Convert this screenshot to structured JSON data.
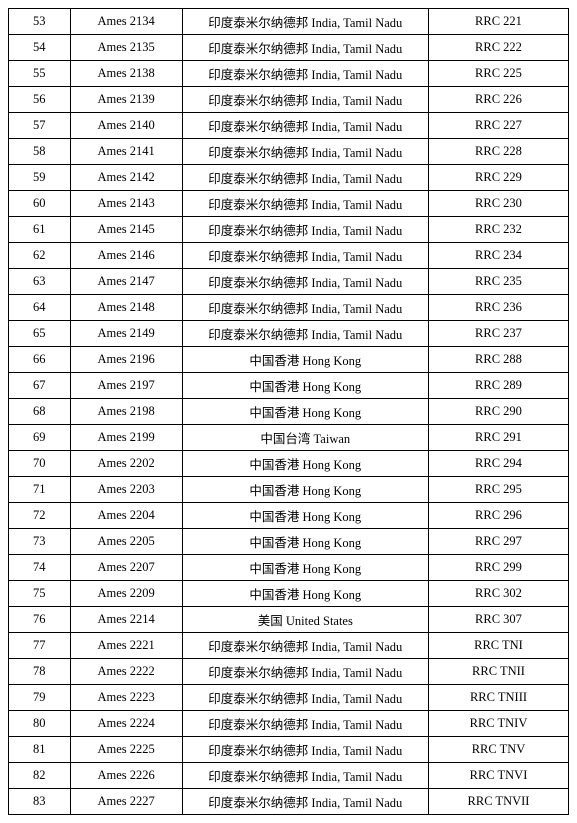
{
  "columns": [
    "col0",
    "col1",
    "col2",
    "col3"
  ],
  "rows": [
    [
      "53",
      "Ames 2134",
      "印度泰米尔纳德邦  India, Tamil Nadu",
      "RRC 221"
    ],
    [
      "54",
      "Ames 2135",
      "印度泰米尔纳德邦  India, Tamil Nadu",
      "RRC 222"
    ],
    [
      "55",
      "Ames 2138",
      "印度泰米尔纳德邦  India, Tamil Nadu",
      "RRC 225"
    ],
    [
      "56",
      "Ames 2139",
      "印度泰米尔纳德邦  India, Tamil Nadu",
      "RRC 226"
    ],
    [
      "57",
      "Ames 2140",
      "印度泰米尔纳德邦  India, Tamil Nadu",
      "RRC 227"
    ],
    [
      "58",
      "Ames 2141",
      "印度泰米尔纳德邦  India, Tamil Nadu",
      "RRC 228"
    ],
    [
      "59",
      "Ames 2142",
      "印度泰米尔纳德邦  India, Tamil Nadu",
      "RRC 229"
    ],
    [
      "60",
      "Ames 2143",
      "印度泰米尔纳德邦  India, Tamil Nadu",
      "RRC 230"
    ],
    [
      "61",
      "Ames 2145",
      "印度泰米尔纳德邦  India, Tamil Nadu",
      "RRC 232"
    ],
    [
      "62",
      "Ames 2146",
      "印度泰米尔纳德邦  India, Tamil Nadu",
      "RRC 234"
    ],
    [
      "63",
      "Ames 2147",
      "印度泰米尔纳德邦  India, Tamil Nadu",
      "RRC 235"
    ],
    [
      "64",
      "Ames 2148",
      "印度泰米尔纳德邦  India, Tamil Nadu",
      "RRC 236"
    ],
    [
      "65",
      "Ames 2149",
      "印度泰米尔纳德邦  India, Tamil Nadu",
      "RRC 237"
    ],
    [
      "66",
      "Ames 2196",
      "中国香港  Hong Kong",
      "RRC 288"
    ],
    [
      "67",
      "Ames 2197",
      "中国香港  Hong Kong",
      "RRC 289"
    ],
    [
      "68",
      "Ames 2198",
      "中国香港  Hong Kong",
      "RRC 290"
    ],
    [
      "69",
      "Ames 2199",
      "中国台湾  Taiwan",
      "RRC 291"
    ],
    [
      "70",
      "Ames 2202",
      "中国香港  Hong Kong",
      "RRC 294"
    ],
    [
      "71",
      "Ames 2203",
      "中国香港  Hong Kong",
      "RRC 295"
    ],
    [
      "72",
      "Ames 2204",
      "中国香港  Hong Kong",
      "RRC 296"
    ],
    [
      "73",
      "Ames 2205",
      "中国香港  Hong Kong",
      "RRC 297"
    ],
    [
      "74",
      "Ames 2207",
      "中国香港  Hong Kong",
      "RRC 299"
    ],
    [
      "75",
      "Ames 2209",
      "中国香港  Hong Kong",
      "RRC 302"
    ],
    [
      "76",
      "Ames 2214",
      "美国  United States",
      "RRC 307"
    ],
    [
      "77",
      "Ames 2221",
      "印度泰米尔纳德邦  India, Tamil Nadu",
      "RRC TNI"
    ],
    [
      "78",
      "Ames 2222",
      "印度泰米尔纳德邦  India, Tamil Nadu",
      "RRC TNII"
    ],
    [
      "79",
      "Ames 2223",
      "印度泰米尔纳德邦  India, Tamil Nadu",
      "RRC TNIII"
    ],
    [
      "80",
      "Ames 2224",
      "印度泰米尔纳德邦  India, Tamil Nadu",
      "RRC TNIV"
    ],
    [
      "81",
      "Ames 2225",
      "印度泰米尔纳德邦  India, Tamil Nadu",
      "RRC TNV"
    ],
    [
      "82",
      "Ames 2226",
      "印度泰米尔纳德邦  India, Tamil Nadu",
      "RRC TNVI"
    ],
    [
      "83",
      "Ames 2227",
      "印度泰米尔纳德邦  India, Tamil Nadu",
      "RRC TNVII"
    ]
  ]
}
